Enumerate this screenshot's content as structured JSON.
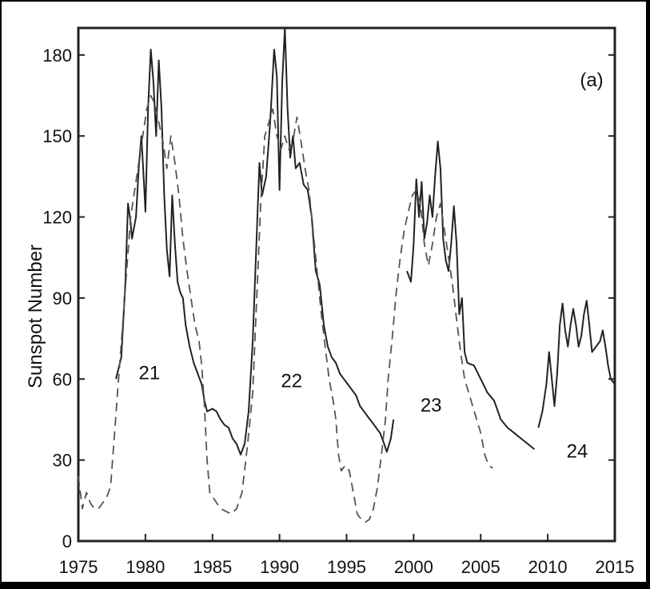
{
  "chart_data": {
    "type": "line",
    "panel_label": "(a)",
    "title": "",
    "xlabel": "",
    "ylabel": "Sunspot Number",
    "xlim": [
      1975,
      2015
    ],
    "ylim": [
      0,
      190
    ],
    "x_ticks": [
      1975,
      1980,
      1985,
      1990,
      1995,
      2000,
      2005,
      2010,
      2015
    ],
    "y_ticks": [
      0,
      30,
      60,
      90,
      120,
      150,
      180
    ],
    "grid": false,
    "legend": "none",
    "cycle_labels": [
      {
        "text": "21",
        "x": 1980.3,
        "y": 60
      },
      {
        "text": "22",
        "x": 1990.9,
        "y": 57
      },
      {
        "text": "23",
        "x": 2001.3,
        "y": 48
      },
      {
        "text": "24",
        "x": 2012.2,
        "y": 31
      }
    ],
    "series": [
      {
        "style": "solid",
        "color": "#222222",
        "points": [
          [
            1977.8,
            60
          ],
          [
            1978.2,
            68
          ],
          [
            1978.5,
            95
          ],
          [
            1978.7,
            125
          ],
          [
            1978.9,
            118
          ],
          [
            1979.0,
            112
          ],
          [
            1979.3,
            120
          ],
          [
            1979.5,
            138
          ],
          [
            1979.7,
            150
          ],
          [
            1979.9,
            132
          ],
          [
            1980.0,
            122
          ],
          [
            1980.2,
            160
          ],
          [
            1980.4,
            182
          ],
          [
            1980.6,
            170
          ],
          [
            1980.8,
            150
          ],
          [
            1981.0,
            178
          ],
          [
            1981.2,
            160
          ],
          [
            1981.4,
            128
          ],
          [
            1981.6,
            108
          ],
          [
            1981.8,
            98
          ],
          [
            1982.0,
            128
          ],
          [
            1982.2,
            110
          ],
          [
            1982.4,
            96
          ],
          [
            1982.6,
            92
          ],
          [
            1982.8,
            90
          ],
          [
            1983.0,
            80
          ],
          [
            1983.3,
            72
          ],
          [
            1983.6,
            66
          ],
          [
            1983.9,
            62
          ],
          [
            1984.2,
            58
          ],
          [
            1984.4,
            52
          ],
          [
            1984.6,
            48
          ],
          [
            1985.0,
            49
          ],
          [
            1985.3,
            48
          ],
          [
            1985.6,
            45
          ],
          [
            1985.9,
            43
          ],
          [
            1986.2,
            42
          ],
          [
            1986.5,
            38
          ],
          [
            1986.8,
            36
          ],
          [
            1987.1,
            32
          ],
          [
            1987.4,
            36
          ],
          [
            1987.7,
            48
          ],
          [
            1988.0,
            74
          ],
          [
            1988.2,
            100
          ],
          [
            1988.5,
            140
          ],
          [
            1988.7,
            128
          ],
          [
            1989.0,
            135
          ],
          [
            1989.3,
            155
          ],
          [
            1989.6,
            182
          ],
          [
            1989.8,
            172
          ],
          [
            1990.0,
            130
          ],
          [
            1990.2,
            170
          ],
          [
            1990.4,
            190
          ],
          [
            1990.6,
            160
          ],
          [
            1990.8,
            142
          ],
          [
            1991.0,
            150
          ],
          [
            1991.2,
            138
          ],
          [
            1991.5,
            140
          ],
          [
            1991.8,
            132
          ],
          [
            1992.1,
            130
          ],
          [
            1992.4,
            120
          ],
          [
            1992.7,
            100
          ],
          [
            1993.0,
            95
          ],
          [
            1993.3,
            80
          ],
          [
            1993.6,
            72
          ],
          [
            1993.9,
            68
          ],
          [
            1994.2,
            66
          ],
          [
            1994.5,
            62
          ],
          [
            1994.8,
            60
          ],
          [
            1995.1,
            58
          ],
          [
            1995.4,
            56
          ],
          [
            1995.7,
            54
          ],
          [
            1996.0,
            50
          ],
          [
            1996.3,
            48
          ],
          [
            1996.6,
            46
          ],
          [
            1996.9,
            44
          ],
          [
            1997.2,
            42
          ],
          [
            1997.5,
            40
          ],
          [
            1997.8,
            36
          ],
          [
            1998.0,
            33
          ],
          [
            1998.3,
            38
          ],
          [
            1998.5,
            45
          ]
        ]
      },
      {
        "style": "solid",
        "color": "#222222",
        "points": [
          [
            1999.5,
            100
          ],
          [
            1999.8,
            96
          ],
          [
            2000.0,
            110
          ],
          [
            2000.2,
            134
          ],
          [
            2000.4,
            120
          ],
          [
            2000.6,
            133
          ],
          [
            2000.8,
            112
          ],
          [
            2001.0,
            118
          ],
          [
            2001.2,
            128
          ],
          [
            2001.4,
            120
          ],
          [
            2001.6,
            135
          ],
          [
            2001.8,
            148
          ],
          [
            2002.0,
            138
          ],
          [
            2002.2,
            112
          ],
          [
            2002.4,
            104
          ],
          [
            2002.6,
            100
          ],
          [
            2002.8,
            110
          ],
          [
            2003.0,
            124
          ],
          [
            2003.2,
            110
          ],
          [
            2003.4,
            84
          ],
          [
            2003.6,
            90
          ],
          [
            2003.8,
            70
          ],
          [
            2004.0,
            66
          ],
          [
            2004.5,
            65
          ],
          [
            2005.0,
            60
          ],
          [
            2005.5,
            55
          ],
          [
            2006.0,
            52
          ],
          [
            2006.5,
            45
          ],
          [
            2007.0,
            42
          ],
          [
            2007.5,
            40
          ],
          [
            2008.0,
            38
          ],
          [
            2008.5,
            36
          ],
          [
            2009.0,
            34
          ]
        ]
      },
      {
        "style": "solid",
        "color": "#222222",
        "points": [
          [
            2009.3,
            42
          ],
          [
            2009.6,
            48
          ],
          [
            2009.9,
            58
          ],
          [
            2010.1,
            70
          ],
          [
            2010.3,
            60
          ],
          [
            2010.5,
            50
          ],
          [
            2010.7,
            62
          ],
          [
            2010.9,
            80
          ],
          [
            2011.1,
            88
          ],
          [
            2011.3,
            78
          ],
          [
            2011.5,
            72
          ],
          [
            2011.7,
            80
          ],
          [
            2011.9,
            86
          ],
          [
            2012.1,
            80
          ],
          [
            2012.3,
            72
          ],
          [
            2012.5,
            76
          ],
          [
            2012.7,
            84
          ],
          [
            2012.9,
            89
          ],
          [
            2013.1,
            80
          ],
          [
            2013.3,
            70
          ],
          [
            2013.6,
            72
          ],
          [
            2013.9,
            74
          ],
          [
            2014.1,
            78
          ],
          [
            2014.3,
            72
          ],
          [
            2014.5,
            65
          ],
          [
            2014.7,
            60
          ],
          [
            2015.0,
            58
          ]
        ]
      },
      {
        "style": "dashed",
        "color": "#555555",
        "points": [
          [
            1975.0,
            24
          ],
          [
            1975.3,
            12
          ],
          [
            1975.6,
            18
          ],
          [
            1975.9,
            14
          ],
          [
            1976.2,
            12
          ],
          [
            1976.5,
            12
          ],
          [
            1976.8,
            14
          ],
          [
            1977.1,
            16
          ],
          [
            1977.4,
            20
          ],
          [
            1977.7,
            40
          ],
          [
            1978.0,
            60
          ],
          [
            1978.3,
            80
          ],
          [
            1978.6,
            100
          ],
          [
            1978.9,
            120
          ],
          [
            1979.2,
            130
          ],
          [
            1979.5,
            140
          ],
          [
            1979.8,
            150
          ],
          [
            1980.1,
            160
          ],
          [
            1980.4,
            165
          ],
          [
            1980.7,
            162
          ],
          [
            1981.0,
            155
          ],
          [
            1981.3,
            148
          ],
          [
            1981.6,
            138
          ],
          [
            1981.9,
            150
          ],
          [
            1982.2,
            140
          ],
          [
            1982.5,
            128
          ],
          [
            1982.8,
            112
          ],
          [
            1983.1,
            100
          ],
          [
            1983.4,
            90
          ],
          [
            1983.7,
            80
          ],
          [
            1984.0,
            74
          ],
          [
            1984.2,
            65
          ],
          [
            1984.4,
            50
          ],
          [
            1984.6,
            30
          ],
          [
            1984.8,
            18
          ],
          [
            1985.2,
            15
          ],
          [
            1985.6,
            12
          ],
          [
            1986.0,
            11
          ],
          [
            1986.4,
            10
          ],
          [
            1986.8,
            12
          ],
          [
            1987.2,
            18
          ],
          [
            1987.6,
            35
          ],
          [
            1988.0,
            55
          ],
          [
            1988.3,
            90
          ],
          [
            1988.6,
            125
          ],
          [
            1988.9,
            150
          ],
          [
            1989.2,
            155
          ],
          [
            1989.5,
            160
          ],
          [
            1989.8,
            150
          ],
          [
            1990.1,
            145
          ],
          [
            1990.4,
            150
          ],
          [
            1990.7,
            145
          ],
          [
            1991.0,
            148
          ],
          [
            1991.3,
            157
          ],
          [
            1991.6,
            148
          ],
          [
            1991.9,
            138
          ],
          [
            1992.2,
            130
          ],
          [
            1992.5,
            115
          ],
          [
            1992.8,
            100
          ],
          [
            1993.1,
            85
          ],
          [
            1993.4,
            72
          ],
          [
            1993.7,
            60
          ],
          [
            1994.0,
            52
          ],
          [
            1994.2,
            45
          ],
          [
            1994.4,
            32
          ],
          [
            1994.6,
            26
          ],
          [
            1994.9,
            28
          ],
          [
            1995.2,
            26
          ],
          [
            1995.5,
            18
          ],
          [
            1995.8,
            10
          ],
          [
            1996.1,
            8
          ],
          [
            1996.4,
            7
          ],
          [
            1996.7,
            8
          ],
          [
            1997.0,
            12
          ],
          [
            1997.3,
            20
          ],
          [
            1997.6,
            32
          ],
          [
            1997.9,
            45
          ],
          [
            1998.1,
            60
          ],
          [
            1998.4,
            75
          ],
          [
            1998.7,
            92
          ],
          [
            1999.0,
            105
          ],
          [
            1999.3,
            115
          ],
          [
            1999.6,
            122
          ],
          [
            1999.9,
            128
          ],
          [
            2000.2,
            130
          ],
          [
            2000.5,
            125
          ],
          [
            2000.8,
            110
          ],
          [
            2001.1,
            102
          ],
          [
            2001.4,
            110
          ],
          [
            2001.7,
            120
          ],
          [
            2002.0,
            125
          ],
          [
            2002.3,
            115
          ],
          [
            2002.6,
            105
          ],
          [
            2002.9,
            95
          ],
          [
            2003.2,
            82
          ],
          [
            2003.5,
            70
          ],
          [
            2003.8,
            60
          ],
          [
            2004.1,
            55
          ],
          [
            2004.4,
            50
          ],
          [
            2004.7,
            45
          ],
          [
            2005.0,
            40
          ],
          [
            2005.3,
            32
          ],
          [
            2005.6,
            28
          ],
          [
            2005.9,
            27
          ]
        ]
      }
    ]
  }
}
